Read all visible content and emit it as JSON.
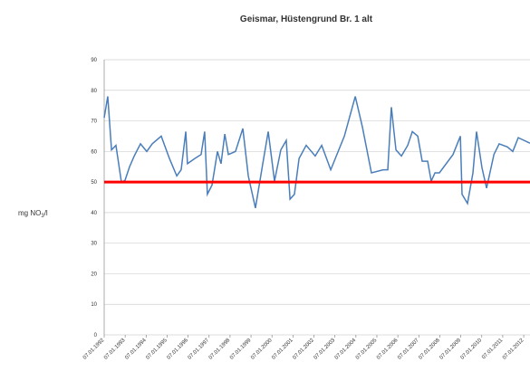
{
  "chart_data": {
    "type": "line",
    "title": "Geismar, Hüstengrund Br. 1 alt",
    "y_label": {
      "prefix": "mg NO",
      "sub": "3",
      "suffix": "/l"
    },
    "x": [
      1992.0,
      1992.17,
      1992.35,
      1992.56,
      1992.82,
      1992.99,
      1993.21,
      1993.43,
      1993.73,
      1994.03,
      1994.29,
      1994.72,
      1995.11,
      1995.46,
      1995.67,
      1995.89,
      1995.97,
      1996.32,
      1996.62,
      1996.79,
      1996.92,
      1997.14,
      1997.4,
      1997.57,
      1997.75,
      1997.92,
      1998.26,
      1998.61,
      1998.87,
      1999.21,
      1999.56,
      1999.82,
      2000.12,
      2000.42,
      2000.68,
      2000.86,
      2001.07,
      2001.29,
      2001.63,
      2002.06,
      2002.37,
      2002.8,
      2003.45,
      2003.97,
      2004.31,
      2004.74,
      2005.3,
      2005.52,
      2005.69,
      2005.91,
      2006.17,
      2006.47,
      2006.69,
      2006.95,
      2007.16,
      2007.42,
      2007.59,
      2007.77,
      2007.98,
      2008.63,
      2008.98,
      2009.06,
      2009.32,
      2009.58,
      2009.75,
      2010.01,
      2010.23,
      2010.58,
      2010.83,
      2011.22,
      2011.48,
      2011.74,
      2012.3
    ],
    "series": [
      {
        "color": "#4a7ebb",
        "values": [
          71,
          78,
          60.5,
          62,
          50,
          50.5,
          55,
          58.5,
          62.5,
          60,
          62.5,
          65,
          57.7,
          52,
          54,
          66.5,
          56,
          57.7,
          59,
          66.5,
          46,
          49,
          60,
          56,
          65.7,
          59,
          60,
          67.5,
          52,
          41.5,
          56,
          66.5,
          50.3,
          60.5,
          63.6,
          44.4,
          46,
          57.7,
          62,
          58.5,
          62,
          54,
          65,
          78,
          68,
          53,
          54,
          54,
          74.5,
          60.5,
          58.5,
          62,
          66.5,
          65,
          56.8,
          56.8,
          50.3,
          53,
          53,
          59,
          65,
          46,
          43,
          53,
          66.5,
          54.7,
          48,
          59,
          62.5,
          61.5,
          60,
          64.5,
          62.7
        ]
      }
    ],
    "threshold": 50,
    "threshold_color": "#ff0000",
    "xlim": [
      1992,
      2012.3
    ],
    "xticks": [
      {
        "value": 1992,
        "label": "07.01.1992"
      },
      {
        "value": 1993,
        "label": "07.01.1993"
      },
      {
        "value": 1994,
        "label": "07.01.1994"
      },
      {
        "value": 1995,
        "label": "07.01.1995"
      },
      {
        "value": 1996,
        "label": "07.01.1996"
      },
      {
        "value": 1997,
        "label": "07.01.1997"
      },
      {
        "value": 1998,
        "label": "07.01.1998"
      },
      {
        "value": 1999,
        "label": "07.01.1999"
      },
      {
        "value": 2000,
        "label": "07.01.2000"
      },
      {
        "value": 2001,
        "label": "07.01.2001"
      },
      {
        "value": 2002,
        "label": "07.01.2002"
      },
      {
        "value": 2003,
        "label": "07.01.2003"
      },
      {
        "value": 2004,
        "label": "07.01.2004"
      },
      {
        "value": 2005,
        "label": "07.01.2005"
      },
      {
        "value": 2006,
        "label": "07.01.2006"
      },
      {
        "value": 2007,
        "label": "07.01.2007"
      },
      {
        "value": 2008,
        "label": "07.01.2008"
      },
      {
        "value": 2009,
        "label": "07.01.2009"
      },
      {
        "value": 2010,
        "label": "07.01.2010"
      },
      {
        "value": 2011,
        "label": "07.01.2011"
      },
      {
        "value": 2012,
        "label": "07.01.2012"
      }
    ],
    "ylim": [
      0,
      90
    ],
    "yticks": [
      0,
      10,
      20,
      30,
      40,
      50,
      60,
      70,
      80,
      90
    ],
    "grid": true
  }
}
